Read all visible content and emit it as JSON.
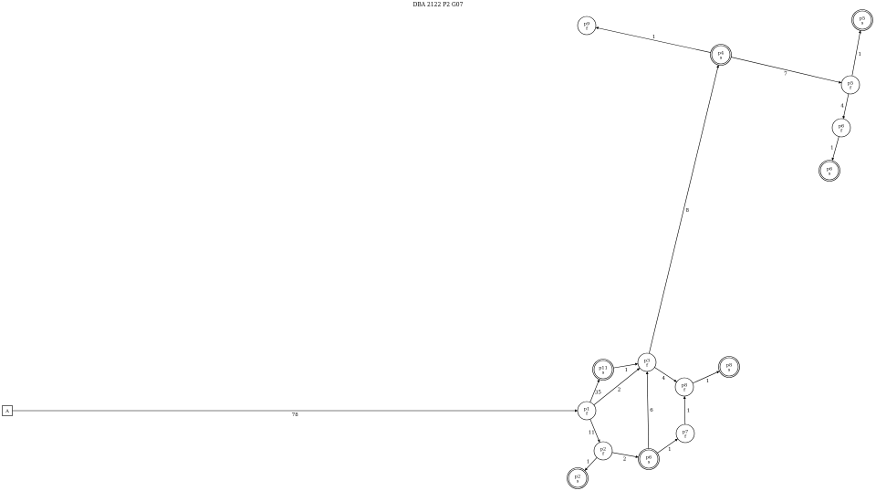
{
  "diagram": {
    "title": "DBA 2122 P2 G07",
    "nodes": [
      {
        "id": "start",
        "label": "A",
        "sub": "",
        "shape": "box"
      },
      {
        "id": "p1",
        "label": "p1",
        "sub": "f",
        "shape": "circle"
      },
      {
        "id": "p11",
        "label": "p11",
        "sub": "s",
        "shape": "double"
      },
      {
        "id": "p2",
        "label": "p2",
        "sub": "f",
        "shape": "circle"
      },
      {
        "id": "p2s",
        "label": "p2",
        "sub": "s",
        "shape": "double"
      },
      {
        "id": "p3",
        "label": "p3",
        "sub": "f",
        "shape": "circle"
      },
      {
        "id": "p6a",
        "label": "p6",
        "sub": "s",
        "shape": "double"
      },
      {
        "id": "p7",
        "label": "p7",
        "sub": "f",
        "shape": "circle"
      },
      {
        "id": "p8",
        "label": "p8",
        "sub": "f",
        "shape": "circle"
      },
      {
        "id": "p8s",
        "label": "p8",
        "sub": "s",
        "shape": "double"
      },
      {
        "id": "p4",
        "label": "p4",
        "sub": "s",
        "shape": "double"
      },
      {
        "id": "p9",
        "label": "p9",
        "sub": "f",
        "shape": "circle"
      },
      {
        "id": "p5",
        "label": "p5",
        "sub": "f",
        "shape": "circle"
      },
      {
        "id": "p5s",
        "label": "p5",
        "sub": "s",
        "shape": "double"
      },
      {
        "id": "p6",
        "label": "p6",
        "sub": "f",
        "shape": "circle"
      },
      {
        "id": "p6s",
        "label": "p6",
        "sub": "s",
        "shape": "double"
      }
    ],
    "edges": [
      {
        "from": "start",
        "to": "p1",
        "label": "78"
      },
      {
        "from": "p1",
        "to": "p11",
        "label": "35"
      },
      {
        "from": "p1",
        "to": "p3",
        "label": "2"
      },
      {
        "from": "p1",
        "to": "p2",
        "label": "11"
      },
      {
        "from": "p11",
        "to": "p3",
        "label": "1"
      },
      {
        "from": "p2",
        "to": "p6a",
        "label": "2"
      },
      {
        "from": "p2",
        "to": "p2s",
        "label": "1"
      },
      {
        "from": "p6a",
        "to": "p3",
        "label": "6"
      },
      {
        "from": "p6a",
        "to": "p7",
        "label": "1"
      },
      {
        "from": "p7",
        "to": "p8",
        "label": "1"
      },
      {
        "from": "p3",
        "to": "p8",
        "label": "4"
      },
      {
        "from": "p8",
        "to": "p8s",
        "label": "1"
      },
      {
        "from": "p3",
        "to": "p4",
        "label": "8"
      },
      {
        "from": "p4",
        "to": "p9",
        "label": "1"
      },
      {
        "from": "p4",
        "to": "p5",
        "label": "7"
      },
      {
        "from": "p5",
        "to": "p5s",
        "label": "1"
      },
      {
        "from": "p5",
        "to": "p6",
        "label": "4"
      },
      {
        "from": "p6",
        "to": "p6s",
        "label": "1"
      }
    ]
  }
}
